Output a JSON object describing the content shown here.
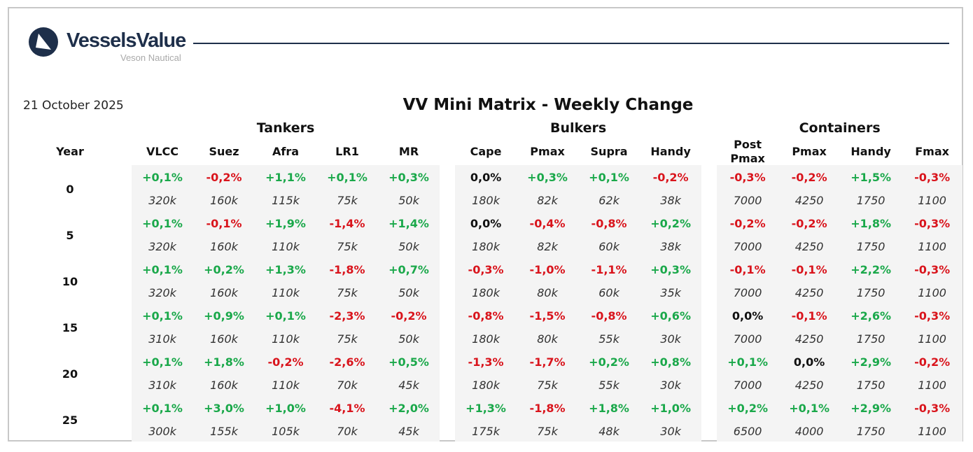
{
  "brand": {
    "name": "VesselsValue",
    "sub": "Veson Nautical",
    "logo_icon": "vv-logo-icon",
    "color": "#1e2f4a"
  },
  "date": "21 October 2025",
  "title": "VV Mini Matrix - Weekly Change",
  "groups": {
    "tankers": "Tankers",
    "bulkers": "Bulkers",
    "containers": "Containers"
  },
  "columns": {
    "year": "Year",
    "tankers": [
      "VLCC",
      "Suez",
      "Afra",
      "LR1",
      "MR"
    ],
    "bulkers": [
      "Cape",
      "Pmax",
      "Supra",
      "Handy"
    ],
    "containers": [
      "Post\nPmax",
      "Pmax",
      "Handy",
      "Fmax"
    ]
  },
  "colors": {
    "positive": "#1aa84a",
    "negative": "#d9141c",
    "neutral": "#111111",
    "shade": "#f4f4f4"
  },
  "rows": [
    {
      "year": "0",
      "tankers": {
        "change": [
          "+0,1%",
          "-0,2%",
          "+1,1%",
          "+0,1%",
          "+0,3%"
        ],
        "value": [
          "320k",
          "160k",
          "115k",
          "75k",
          "50k"
        ]
      },
      "bulkers": {
        "change": [
          "0,0%",
          "+0,3%",
          "+0,1%",
          "-0,2%"
        ],
        "value": [
          "180k",
          "82k",
          "62k",
          "38k"
        ]
      },
      "containers": {
        "change": [
          "-0,3%",
          "-0,2%",
          "+1,5%",
          "-0,3%"
        ],
        "value": [
          "7000",
          "4250",
          "1750",
          "1100"
        ]
      }
    },
    {
      "year": "5",
      "tankers": {
        "change": [
          "+0,1%",
          "-0,1%",
          "+1,9%",
          "-1,4%",
          "+1,4%"
        ],
        "value": [
          "320k",
          "160k",
          "110k",
          "75k",
          "50k"
        ]
      },
      "bulkers": {
        "change": [
          "0,0%",
          "-0,4%",
          "-0,8%",
          "+0,2%"
        ],
        "value": [
          "180k",
          "82k",
          "60k",
          "38k"
        ]
      },
      "containers": {
        "change": [
          "-0,2%",
          "-0,2%",
          "+1,8%",
          "-0,3%"
        ],
        "value": [
          "7000",
          "4250",
          "1750",
          "1100"
        ]
      }
    },
    {
      "year": "10",
      "tankers": {
        "change": [
          "+0,1%",
          "+0,2%",
          "+1,3%",
          "-1,8%",
          "+0,7%"
        ],
        "value": [
          "320k",
          "160k",
          "110k",
          "75k",
          "50k"
        ]
      },
      "bulkers": {
        "change": [
          "-0,3%",
          "-1,0%",
          "-1,1%",
          "+0,3%"
        ],
        "value": [
          "180k",
          "80k",
          "60k",
          "35k"
        ]
      },
      "containers": {
        "change": [
          "-0,1%",
          "-0,1%",
          "+2,2%",
          "-0,3%"
        ],
        "value": [
          "7000",
          "4250",
          "1750",
          "1100"
        ]
      }
    },
    {
      "year": "15",
      "tankers": {
        "change": [
          "+0,1%",
          "+0,9%",
          "+0,1%",
          "-2,3%",
          "-0,2%"
        ],
        "value": [
          "310k",
          "160k",
          "110k",
          "75k",
          "50k"
        ]
      },
      "bulkers": {
        "change": [
          "-0,8%",
          "-1,5%",
          "-0,8%",
          "+0,6%"
        ],
        "value": [
          "180k",
          "80k",
          "55k",
          "30k"
        ]
      },
      "containers": {
        "change": [
          "0,0%",
          "-0,1%",
          "+2,6%",
          "-0,3%"
        ],
        "value": [
          "7000",
          "4250",
          "1750",
          "1100"
        ]
      }
    },
    {
      "year": "20",
      "tankers": {
        "change": [
          "+0,1%",
          "+1,8%",
          "-0,2%",
          "-2,6%",
          "+0,5%"
        ],
        "value": [
          "310k",
          "160k",
          "110k",
          "70k",
          "45k"
        ]
      },
      "bulkers": {
        "change": [
          "-1,3%",
          "-1,7%",
          "+0,2%",
          "+0,8%"
        ],
        "value": [
          "180k",
          "75k",
          "55k",
          "30k"
        ]
      },
      "containers": {
        "change": [
          "+0,1%",
          "0,0%",
          "+2,9%",
          "-0,2%"
        ],
        "value": [
          "7000",
          "4250",
          "1750",
          "1100"
        ]
      }
    },
    {
      "year": "25",
      "tankers": {
        "change": [
          "+0,1%",
          "+3,0%",
          "+1,0%",
          "-4,1%",
          "+2,0%"
        ],
        "value": [
          "300k",
          "155k",
          "105k",
          "70k",
          "45k"
        ]
      },
      "bulkers": {
        "change": [
          "+1,3%",
          "-1,8%",
          "+1,8%",
          "+1,0%"
        ],
        "value": [
          "175k",
          "75k",
          "48k",
          "30k"
        ]
      },
      "containers": {
        "change": [
          "+0,2%",
          "+0,1%",
          "+2,9%",
          "-0,3%"
        ],
        "value": [
          "6500",
          "4000",
          "1750",
          "1100"
        ]
      }
    }
  ]
}
